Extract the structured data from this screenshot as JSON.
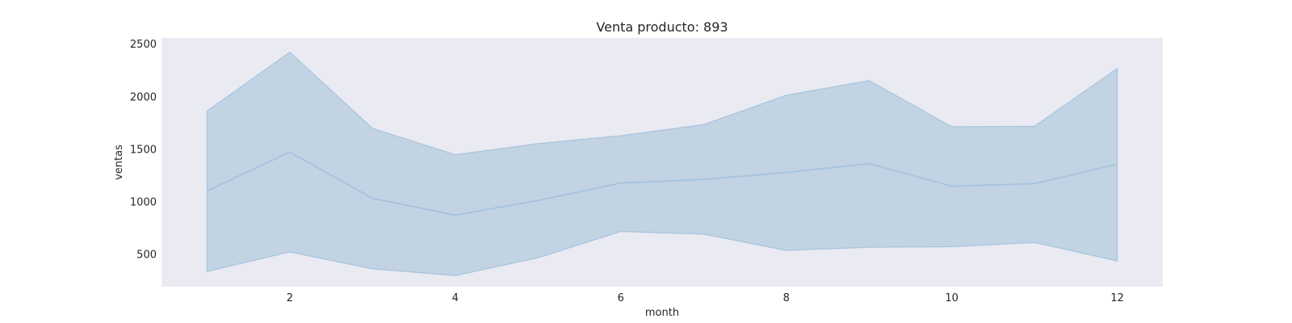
{
  "chart_data": {
    "type": "area",
    "title": "Venta producto: 893",
    "xlabel": "month",
    "ylabel": "ventas",
    "x": [
      1,
      2,
      3,
      4,
      5,
      6,
      7,
      8,
      9,
      10,
      11,
      12
    ],
    "series": [
      {
        "values": [
          1100,
          1470,
          1030,
          870,
          1010,
          1175,
          1210,
          1275,
          1360,
          1145,
          1170,
          1355
        ],
        "lower": [
          335,
          520,
          360,
          295,
          465,
          715,
          690,
          535,
          565,
          570,
          610,
          435
        ],
        "upper": [
          1860,
          2420,
          1695,
          1445,
          1550,
          1625,
          1730,
          2010,
          2150,
          1710,
          1715,
          2265
        ]
      }
    ],
    "xlim": [
      0.45,
      12.55
    ],
    "ylim": [
      190,
      2555
    ],
    "xticks": [
      2,
      4,
      6,
      8,
      10,
      12
    ],
    "yticks": [
      500,
      1000,
      1500,
      2000,
      2500
    ],
    "grid": false,
    "colors": {
      "line": "#a7c4de",
      "band": "#c2d3e4",
      "plot_background": "#eaeaf2"
    }
  }
}
